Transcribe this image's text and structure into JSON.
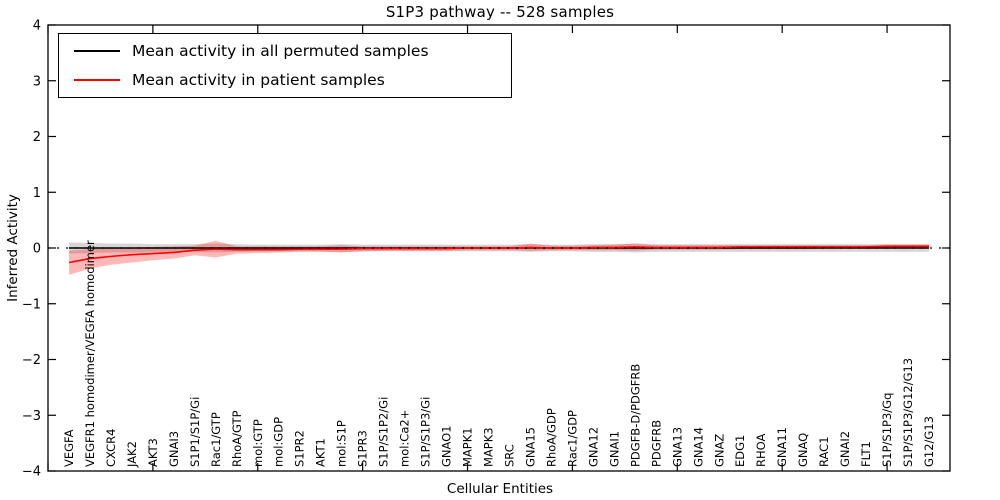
{
  "title": "S1P3 pathway -- 528 samples",
  "legend": {
    "items": [
      {
        "label": "Mean activity in all permuted samples",
        "color": "#000000"
      },
      {
        "label": "Mean activity in patient samples",
        "color": "#ff0000"
      }
    ]
  },
  "chart_data": {
    "type": "line",
    "title": "S1P3 pathway -- 528 samples",
    "xlabel": "Cellular Entities",
    "ylabel": "Inferred Activity",
    "ylim": [
      -4,
      4
    ],
    "grid": false,
    "legend_position": "upper left",
    "zero_line_style": "dotted",
    "ytick_values": [
      -4,
      -3,
      -2,
      -1,
      0,
      1,
      2,
      3,
      4
    ],
    "ytick_labels": [
      "−4",
      "−3",
      "−2",
      "−1",
      "0",
      "1",
      "2",
      "3",
      "4"
    ],
    "categories": [
      "VEGFA",
      "VEGFR1 homodimer/VEGFA homodimer",
      "CXCR4",
      "JAK2",
      "AKT3",
      "GNAI3",
      "S1P1/S1P/Gi",
      "Rac1/GTP",
      "RhoA/GTP",
      "mol:GTP",
      "mol:GDP",
      "S1PR2",
      "AKT1",
      "mol:S1P",
      "S1PR3",
      "S1P/S1P2/Gi",
      "mol:Ca2+",
      "S1P/S1P3/Gi",
      "GNAO1",
      "MAPK1",
      "MAPK3",
      "SRC",
      "GNA15",
      "RhoA/GDP",
      "Rac1/GDP",
      "GNA12",
      "GNAI1",
      "PDGFB-D/PDGFRB",
      "PDGFRB",
      "GNA13",
      "GNA14",
      "GNAZ",
      "EDG1",
      "RHOA",
      "GNA11",
      "GNAQ",
      "RAC1",
      "GNAI2",
      "FLT1",
      "S1P/S1P3/Gq",
      "S1P/S1P3/G12/G13",
      "G12/G13"
    ],
    "series": [
      {
        "name": "Mean activity in all permuted samples",
        "slug": "permuted-mean",
        "color": "#000000",
        "values": [
          0,
          0,
          0,
          0,
          0,
          0,
          0,
          0,
          0,
          0,
          0,
          0,
          0,
          0,
          0,
          0,
          0,
          0,
          0,
          0,
          0,
          0,
          0,
          0,
          0,
          0,
          0,
          0,
          0,
          0,
          0,
          0,
          0,
          0,
          0,
          0,
          0,
          0,
          0,
          0,
          0,
          0
        ]
      },
      {
        "name": "Mean activity in patient samples",
        "slug": "patient-mean",
        "color": "#ff0000",
        "values": [
          -0.26,
          -0.19,
          -0.15,
          -0.12,
          -0.1,
          -0.08,
          -0.04,
          -0.02,
          -0.03,
          -0.03,
          -0.03,
          -0.02,
          -0.02,
          -0.02,
          -0.01,
          -0.01,
          -0.01,
          -0.01,
          -0.01,
          0.0,
          0.0,
          0.0,
          0.01,
          0.0,
          0.0,
          0.01,
          0.01,
          0.02,
          0.01,
          0.01,
          0.01,
          0.01,
          0.02,
          0.02,
          0.02,
          0.02,
          0.02,
          0.02,
          0.02,
          0.03,
          0.03,
          0.03
        ]
      }
    ],
    "bands": [
      {
        "name": "permuted-range",
        "color": "rgba(0,0,0,0.16)",
        "upper": [
          0.1,
          0.09,
          0.08,
          0.08,
          0.07,
          0.07,
          0.07,
          0.08,
          0.07,
          0.06,
          0.06,
          0.06,
          0.06,
          0.07,
          0.06,
          0.06,
          0.06,
          0.06,
          0.06,
          0.06,
          0.06,
          0.06,
          0.07,
          0.06,
          0.06,
          0.07,
          0.07,
          0.08,
          0.07,
          0.07,
          0.07,
          0.07,
          0.07,
          0.07,
          0.07,
          0.07,
          0.07,
          0.07,
          0.07,
          0.07,
          0.07,
          0.07
        ],
        "lower": [
          -0.1,
          -0.09,
          -0.08,
          -0.08,
          -0.07,
          -0.07,
          -0.07,
          -0.08,
          -0.07,
          -0.06,
          -0.06,
          -0.06,
          -0.06,
          -0.07,
          -0.06,
          -0.06,
          -0.06,
          -0.06,
          -0.06,
          -0.06,
          -0.06,
          -0.06,
          -0.07,
          -0.06,
          -0.06,
          -0.07,
          -0.07,
          -0.08,
          -0.07,
          -0.07,
          -0.07,
          -0.07,
          -0.07,
          -0.07,
          -0.07,
          -0.07,
          -0.07,
          -0.07,
          -0.07,
          -0.07,
          -0.07,
          -0.07
        ]
      },
      {
        "name": "patient-range",
        "color": "rgba(255,0,0,0.28)",
        "upper": [
          -0.05,
          -0.02,
          0.0,
          0.01,
          0.02,
          0.03,
          0.04,
          0.13,
          0.03,
          0.03,
          0.03,
          0.03,
          0.03,
          0.05,
          0.03,
          0.03,
          0.03,
          0.03,
          0.03,
          0.03,
          0.03,
          0.03,
          0.08,
          0.04,
          0.04,
          0.05,
          0.06,
          0.08,
          0.05,
          0.05,
          0.05,
          0.05,
          0.05,
          0.05,
          0.05,
          0.05,
          0.05,
          0.05,
          0.05,
          0.06,
          0.06,
          0.06
        ],
        "lower": [
          -0.48,
          -0.37,
          -0.3,
          -0.26,
          -0.22,
          -0.19,
          -0.13,
          -0.17,
          -0.1,
          -0.09,
          -0.08,
          -0.07,
          -0.07,
          -0.08,
          -0.06,
          -0.05,
          -0.05,
          -0.05,
          -0.05,
          -0.04,
          -0.04,
          -0.04,
          -0.05,
          -0.04,
          -0.04,
          -0.04,
          -0.04,
          -0.05,
          -0.03,
          -0.03,
          -0.03,
          -0.03,
          -0.02,
          -0.02,
          -0.02,
          -0.02,
          -0.01,
          -0.01,
          -0.01,
          0.0,
          0.0,
          0.0
        ]
      }
    ]
  }
}
